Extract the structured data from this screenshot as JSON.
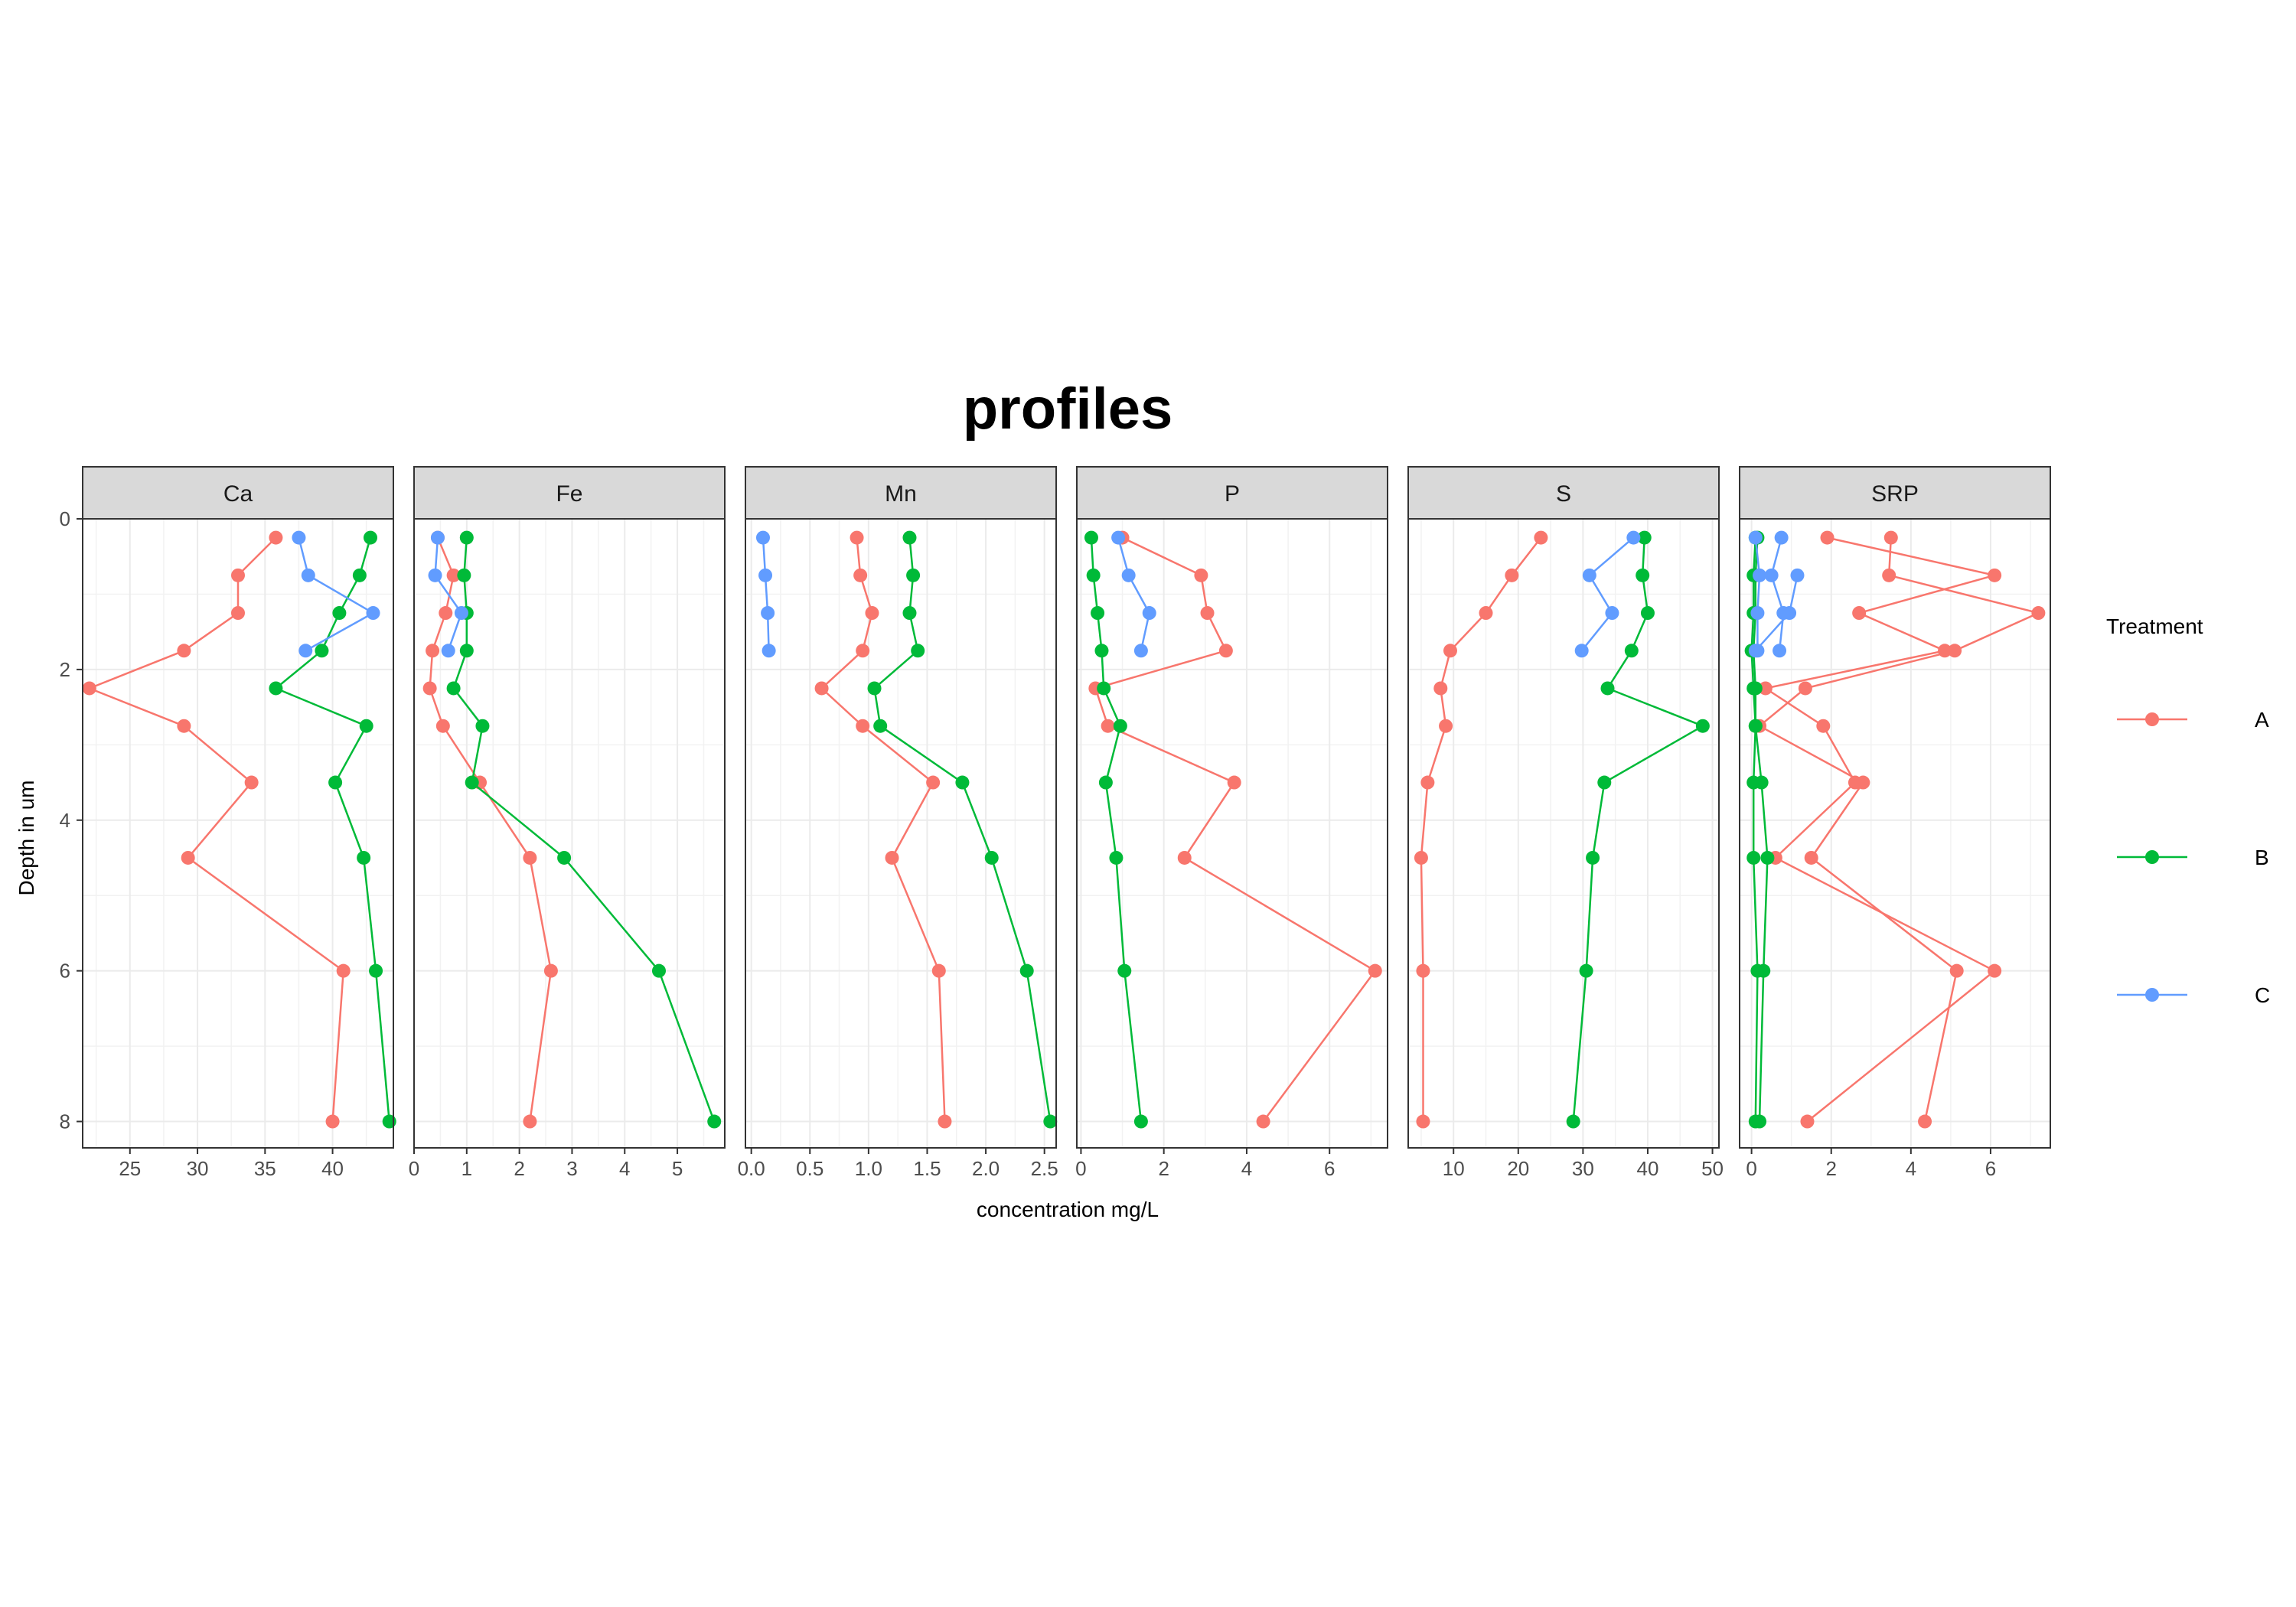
{
  "chart_data": {
    "type": "line",
    "title": "profiles",
    "xlabel": "concentration mg/L",
    "ylabel": "Depth in um",
    "y_reversed": true,
    "ylim": [
      0,
      8.35
    ],
    "y_ticks": [
      0,
      2,
      4,
      6,
      8
    ],
    "grid": true,
    "legend": {
      "title": "Treatment",
      "placement": "right"
    },
    "colors": {
      "A": "#F8766D",
      "B": "#00BA38",
      "C": "#619CFF"
    },
    "facets": [
      {
        "name": "Ca",
        "xlim": [
          21.5,
          44.5
        ],
        "x_ticks": [
          25,
          30,
          35,
          40
        ],
        "tick_labels": [
          "25",
          "30",
          "35",
          "40"
        ],
        "series": [
          {
            "name": "A",
            "depth": [
              0.25,
              0.75,
              1.25,
              1.75,
              2.25,
              2.75,
              3.5,
              4.5,
              6,
              8
            ],
            "values": [
              35.8,
              33.0,
              33.0,
              29.0,
              22.0,
              29.0,
              34.0,
              29.3,
              40.8,
              40.0
            ]
          },
          {
            "name": "B",
            "depth": [
              0.25,
              0.75,
              1.25,
              1.75,
              2.25,
              2.75,
              3.5,
              4.5,
              6,
              8
            ],
            "values": [
              42.8,
              42.0,
              40.5,
              39.2,
              35.8,
              42.5,
              40.2,
              42.3,
              43.2,
              44.2
            ]
          },
          {
            "name": "C",
            "depth": [
              0.25,
              0.75,
              1.25,
              1.75
            ],
            "values": [
              37.5,
              38.2,
              43.0,
              38.0
            ]
          }
        ]
      },
      {
        "name": "Fe",
        "xlim": [
          0,
          5.9
        ],
        "x_ticks": [
          0,
          1,
          2,
          3,
          4,
          5
        ],
        "tick_labels": [
          "0",
          "1",
          "2",
          "3",
          "4",
          "5"
        ],
        "series": [
          {
            "name": "A",
            "depth": [
              0.25,
              0.75,
              1.25,
              1.75,
              2.25,
              2.75,
              3.5,
              4.5,
              6,
              8
            ],
            "values": [
              0.45,
              0.75,
              0.6,
              0.35,
              0.3,
              0.55,
              1.25,
              2.2,
              2.6,
              2.2
            ]
          },
          {
            "name": "B",
            "depth": [
              0.25,
              0.75,
              1.25,
              1.75,
              2.25,
              2.75,
              3.5,
              4.5,
              6,
              8
            ],
            "values": [
              1.0,
              0.95,
              1.0,
              1.0,
              0.75,
              1.3,
              1.1,
              2.85,
              4.65,
              5.7
            ]
          },
          {
            "name": "C",
            "depth": [
              0.25,
              0.75,
              1.25,
              1.75
            ],
            "values": [
              0.45,
              0.4,
              0.9,
              0.65
            ]
          }
        ]
      },
      {
        "name": "Mn",
        "xlim": [
          -0.05,
          2.6
        ],
        "x_ticks": [
          0.0,
          0.5,
          1.0,
          1.5,
          2.0,
          2.5
        ],
        "tick_labels": [
          "0.0",
          "0.5",
          "1.0",
          "1.5",
          "2.0",
          "2.5"
        ],
        "series": [
          {
            "name": "A",
            "depth": [
              0.25,
              0.75,
              1.25,
              1.75,
              2.25,
              2.75,
              3.5,
              4.5,
              6,
              8
            ],
            "values": [
              0.9,
              0.93,
              1.03,
              0.95,
              0.6,
              0.95,
              1.55,
              1.2,
              1.6,
              1.65
            ]
          },
          {
            "name": "B",
            "depth": [
              0.25,
              0.75,
              1.25,
              1.75,
              2.25,
              2.75,
              3.5,
              4.5,
              6,
              8
            ],
            "values": [
              1.35,
              1.38,
              1.35,
              1.42,
              1.05,
              1.1,
              1.8,
              2.05,
              2.35,
              2.55
            ]
          },
          {
            "name": "C",
            "depth": [
              0.25,
              0.75,
              1.25,
              1.75
            ],
            "values": [
              0.1,
              0.12,
              0.14,
              0.15
            ]
          }
        ]
      },
      {
        "name": "P",
        "xlim": [
          -0.1,
          7.4
        ],
        "x_ticks": [
          0,
          2,
          4,
          6
        ],
        "tick_labels": [
          "0",
          "2",
          "4",
          "6"
        ],
        "series": [
          {
            "name": "A",
            "depth": [
              0.25,
              0.75,
              1.25,
              1.75,
              2.25,
              2.75,
              3.5,
              4.5,
              6,
              8
            ],
            "values": [
              1.0,
              2.9,
              3.05,
              3.5,
              0.35,
              0.65,
              3.7,
              2.5,
              7.1,
              4.4
            ]
          },
          {
            "name": "B",
            "depth": [
              0.25,
              0.75,
              1.25,
              1.75,
              2.25,
              2.75,
              3.5,
              4.5,
              6,
              8
            ],
            "values": [
              0.25,
              0.3,
              0.4,
              0.5,
              0.55,
              0.95,
              0.6,
              0.85,
              1.05,
              1.45
            ]
          },
          {
            "name": "C",
            "depth": [
              0.25,
              0.75,
              1.25,
              1.75
            ],
            "values": [
              0.9,
              1.15,
              1.65,
              1.45
            ]
          }
        ]
      },
      {
        "name": "S",
        "xlim": [
          3,
          51
        ],
        "x_ticks": [
          10,
          20,
          30,
          40,
          50
        ],
        "tick_labels": [
          "10",
          "20",
          "30",
          "40",
          "50"
        ],
        "series": [
          {
            "name": "A",
            "depth": [
              0.25,
              0.75,
              1.25,
              1.75,
              2.25,
              2.75,
              3.5,
              4.5,
              6,
              8
            ],
            "values": [
              23.5,
              19.0,
              15.0,
              9.5,
              8.0,
              8.8,
              6.0,
              5.0,
              5.3,
              5.3
            ]
          },
          {
            "name": "B",
            "depth": [
              0.25,
              0.75,
              1.25,
              1.75,
              2.25,
              2.75,
              3.5,
              4.5,
              6,
              8
            ],
            "values": [
              39.5,
              39.2,
              40.0,
              37.5,
              33.8,
              48.5,
              33.3,
              31.5,
              30.5,
              28.5
            ]
          },
          {
            "name": "C",
            "depth": [
              0.25,
              0.75,
              1.25,
              1.75
            ],
            "values": [
              37.8,
              31.0,
              34.5,
              29.8
            ]
          }
        ]
      },
      {
        "name": "SRP",
        "xlim": [
          -0.3,
          7.5
        ],
        "x_ticks": [
          0,
          2,
          4,
          6
        ],
        "tick_labels": [
          "0",
          "2",
          "4",
          "6"
        ],
        "series": [
          {
            "name": "A",
            "depth": [
              0.25,
              0.75,
              1.25,
              1.75,
              2.25,
              2.75,
              3.5,
              4.5,
              6,
              8
            ],
            "values": [
              1.9,
              6.1,
              2.7,
              4.85,
              0.35,
              1.8,
              2.6,
              0.6,
              6.1,
              1.4
            ]
          },
          {
            "name": "A",
            "depth": [
              0.25,
              0.75,
              1.25,
              1.75,
              2.25,
              2.75,
              3.5,
              4.5,
              6,
              8
            ],
            "values": [
              3.5,
              3.45,
              7.2,
              5.1,
              1.35,
              0.2,
              2.8,
              1.5,
              5.15,
              4.35
            ]
          },
          {
            "name": "B",
            "depth": [
              0.25,
              0.75,
              1.25,
              1.75,
              2.25,
              2.75,
              3.5,
              4.5,
              6,
              8
            ],
            "values": [
              0.1,
              0.05,
              0.05,
              0.0,
              0.05,
              0.1,
              0.05,
              0.05,
              0.15,
              0.1
            ]
          },
          {
            "name": "B",
            "depth": [
              0.25,
              0.75,
              1.25,
              1.75,
              2.25,
              2.75,
              3.5,
              4.5,
              6,
              8
            ],
            "values": [
              0.15,
              0.1,
              0.1,
              0.05,
              0.1,
              0.1,
              0.25,
              0.4,
              0.3,
              0.2
            ]
          },
          {
            "name": "C",
            "depth": [
              0.25,
              0.75,
              1.25,
              1.75
            ],
            "values": [
              0.1,
              0.2,
              0.15,
              0.15
            ]
          },
          {
            "name": "C",
            "depth": [
              0.25,
              0.75,
              1.25,
              1.75
            ],
            "values": [
              0.75,
              0.5,
              0.8,
              0.7
            ]
          },
          {
            "name": "C",
            "depth": [
              0.75,
              1.25,
              1.75
            ],
            "values": [
              1.15,
              0.95,
              0.1
            ]
          }
        ]
      }
    ]
  }
}
